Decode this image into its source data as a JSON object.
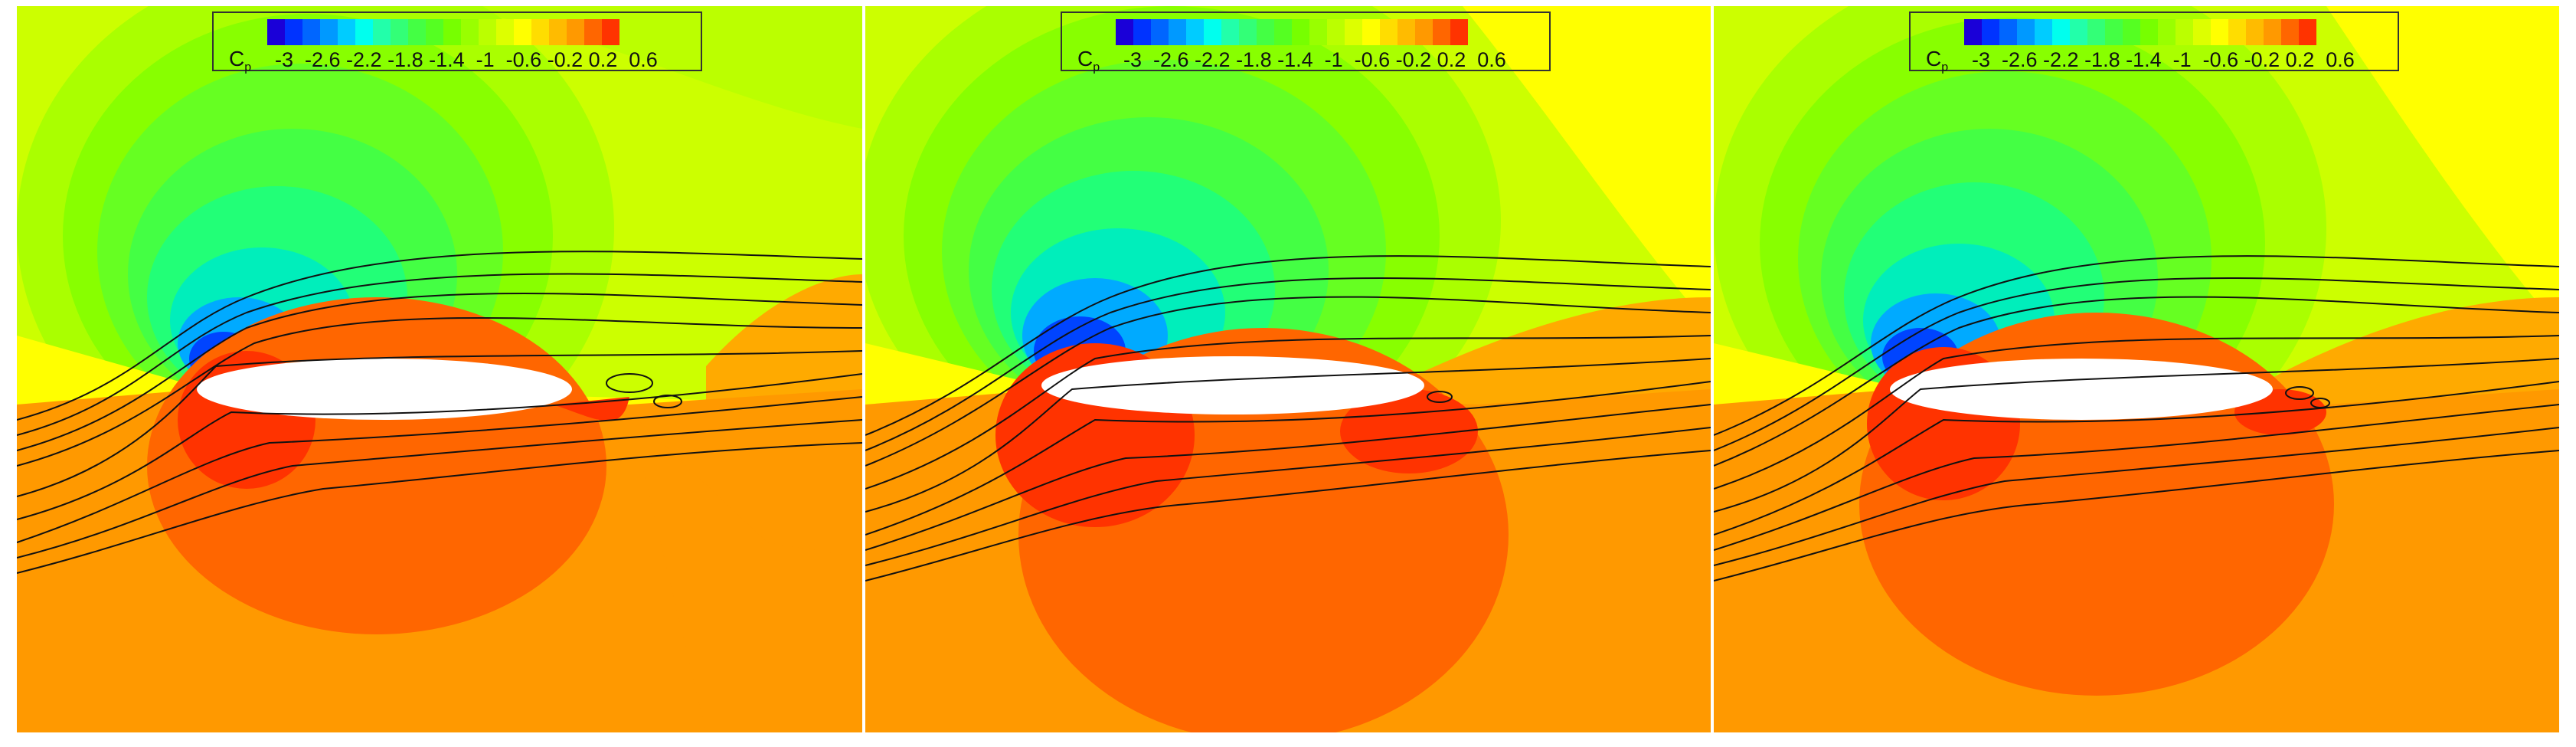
{
  "legend": {
    "variable": "C",
    "variable_sub": "p",
    "tick_labels": "-3  -2.6 -2.2 -1.8 -1.4  -1  -0.6 -0.2 0.2  0.6",
    "colors": [
      "#1a00d8",
      "#0033ff",
      "#0066ff",
      "#0099ff",
      "#00ccff",
      "#00ffee",
      "#22ffaa",
      "#33ff77",
      "#44ff44",
      "#55ff22",
      "#77ff00",
      "#99ff00",
      "#bbff00",
      "#ddff00",
      "#ffff00",
      "#ffdd00",
      "#ffbb00",
      "#ff9900",
      "#ff6600",
      "#ff3300"
    ]
  },
  "panels": [
    {
      "name": "panel-1"
    },
    {
      "name": "panel-2"
    },
    {
      "name": "panel-3"
    }
  ]
}
